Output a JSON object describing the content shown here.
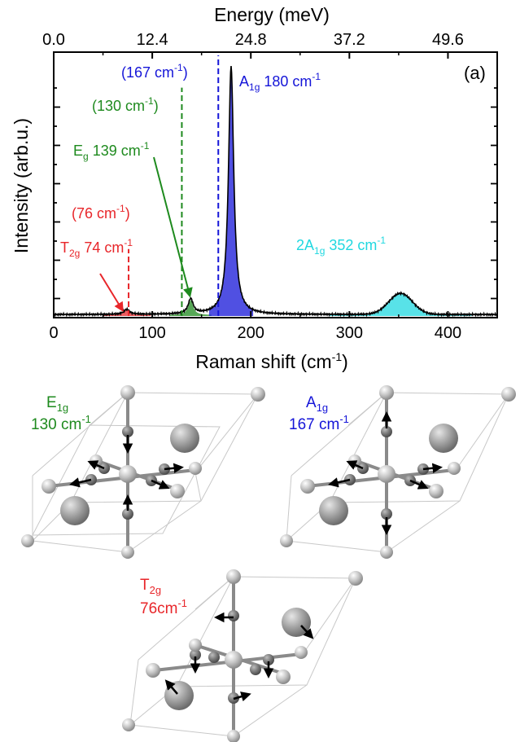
{
  "chart_data": {
    "type": "line",
    "panel_label": "(a)",
    "xlabel": "Raman shift (cm",
    "xlabel_sup": "-1",
    "xlabel_end": ")",
    "ylabel": "Intensity (arb.u.)",
    "top_xlabel": "Energy (meV)",
    "xlim": [
      0,
      450
    ],
    "ylim": [
      0,
      1.05
    ],
    "x_ticks": [
      "0",
      "100",
      "200",
      "300",
      "400"
    ],
    "x_tick_values": [
      0,
      100,
      200,
      300,
      400
    ],
    "top_ticks": [
      "0.0",
      "12.4",
      "24.8",
      "37.2",
      "49.6"
    ],
    "top_tick_values": [
      0,
      100,
      200,
      300,
      400
    ],
    "y_ticks": [
      "",
      "",
      "",
      "",
      "",
      "",
      "",
      "",
      "",
      "",
      "",
      "",
      "",
      "",
      ""
    ],
    "y_tick_values": [
      0.0,
      0.1,
      0.2,
      0.3,
      0.4,
      0.5,
      0.6,
      0.7,
      0.8,
      0.9,
      1.0
    ],
    "peaks": [
      {
        "name": "T2g",
        "center": 74,
        "amplitude": 0.02,
        "width": 3.5,
        "color": "#e8262a"
      },
      {
        "name": "Eg",
        "center": 139,
        "amplitude": 0.06,
        "width": 3.0,
        "color": "#1e8a1e"
      },
      {
        "name": "A1g",
        "center": 180,
        "amplitude": 1.0,
        "width": 3.2,
        "color": "#1515d8"
      },
      {
        "name": "2A1g",
        "center": 352,
        "amplitude": 0.085,
        "width": 12.0,
        "color": "#20d8e0"
      }
    ],
    "dashed_lines": [
      {
        "x": 76,
        "top": 0.27,
        "color": "#e8262a"
      },
      {
        "x": 130,
        "top": 0.92,
        "color": "#1e8a1e"
      },
      {
        "x": 167,
        "top": 1.05,
        "color": "#1515d8"
      }
    ],
    "annotations": [
      {
        "text": "(167 cm",
        "sup": "-1",
        "end": ")",
        "color": "#1515d8"
      },
      {
        "text": "A",
        "sub": "1g",
        "end": " 180 cm",
        "sup": "-1",
        "color": "#1515d8"
      },
      {
        "text": "(130 cm",
        "sup": "-1",
        "end": ")",
        "color": "#1e8a1e"
      },
      {
        "text": "E",
        "sub": "g",
        "end": " 139 cm",
        "sup": "-1",
        "color": "#1e8a1e"
      },
      {
        "text": "(76 cm",
        "sup": "-1",
        "end": ")",
        "color": "#e8262a"
      },
      {
        "text": "T",
        "sub": "2g",
        "end": " 74 cm",
        "sup": "-1",
        "color": "#e8262a"
      },
      {
        "text": "2A",
        "sub": "1g",
        "end": " 352 cm",
        "sup": "-1",
        "color": "#20d8e0"
      }
    ]
  },
  "modes": {
    "e1g": {
      "symbol": "E",
      "sub": "1g",
      "freq": "130 cm",
      "sup": "-1",
      "color": "#1e8a1e"
    },
    "a1g": {
      "symbol": "A",
      "sub": "1g",
      "freq": "167 cm",
      "sup": "-1",
      "color": "#1515d8"
    },
    "t2g": {
      "symbol": "T",
      "sub": "2g",
      "freq": "76cm",
      "sup": "-1",
      "color": "#e8262a"
    }
  }
}
